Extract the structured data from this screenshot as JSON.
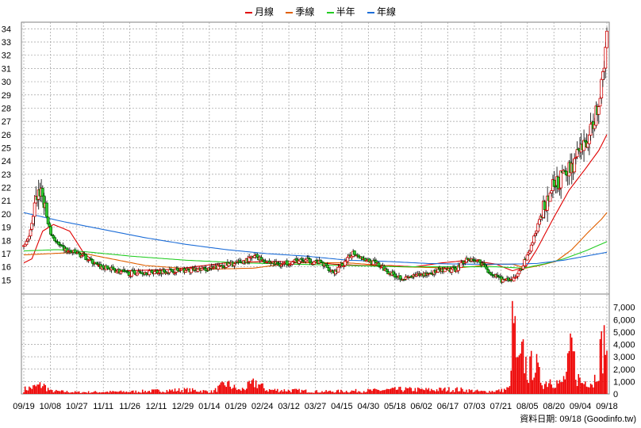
{
  "legend": [
    {
      "name": "月線",
      "color": "#e00000"
    },
    {
      "name": "季線",
      "color": "#e06000"
    },
    {
      "name": "半年",
      "color": "#22cc22"
    },
    {
      "name": "年線",
      "color": "#1e6ed8"
    }
  ],
  "source_note": "資料日期: 09/18 (Goodinfo.tw)",
  "colors": {
    "candle_up_fill": "#ffffff",
    "candle_up_edge": "#d00000",
    "candle_down_fill": "#33cc33",
    "candle_down_edge": "#006600",
    "volume_bar": "#ee0000",
    "grid": "#a0a0a0",
    "frame": "#808080"
  },
  "chart_data": {
    "type": "candlestick_volume",
    "x_tick_labels": [
      "09/19",
      "10/08",
      "10/27",
      "11/11",
      "11/26",
      "12/11",
      "12/29",
      "01/14",
      "01/29",
      "02/24",
      "03/12",
      "03/27",
      "04/15",
      "04/30",
      "05/18",
      "06/02",
      "06/17",
      "07/03",
      "07/21",
      "08/05",
      "08/20",
      "09/04",
      "09/18"
    ],
    "price_axis": {
      "ylim": [
        14,
        34.5
      ],
      "ticks": [
        15,
        16,
        17,
        18,
        19,
        20,
        21,
        22,
        23,
        24,
        25,
        26,
        27,
        28,
        29,
        30,
        31,
        32,
        33,
        34
      ]
    },
    "volume_axis": {
      "ylim": [
        0,
        8000
      ],
      "tick_labels": [
        "0",
        "1,000",
        "2,000",
        "3,000",
        "4,000",
        "5,000",
        "6,000",
        "7,000"
      ],
      "tick_values": [
        0,
        1000,
        2000,
        3000,
        4000,
        5000,
        6000,
        7000
      ]
    },
    "ma_series": [
      {
        "name": "月線",
        "points": [
          [
            0,
            16.3
          ],
          [
            6,
            16.6
          ],
          [
            14,
            18.7
          ],
          [
            22,
            19.2
          ],
          [
            34,
            18.7
          ],
          [
            44,
            17.1
          ],
          [
            56,
            16.0
          ],
          [
            74,
            15.7
          ],
          [
            110,
            15.8
          ],
          [
            150,
            16.3
          ],
          [
            180,
            16.4
          ],
          [
            210,
            16.4
          ],
          [
            230,
            16.2
          ],
          [
            250,
            16.1
          ],
          [
            270,
            16.1
          ],
          [
            290,
            16.0
          ],
          [
            310,
            16.3
          ],
          [
            330,
            16.5
          ],
          [
            350,
            16.2
          ],
          [
            362,
            15.7
          ],
          [
            372,
            16.0
          ],
          [
            380,
            17.3
          ],
          [
            392,
            19.6
          ],
          [
            404,
            21.8
          ],
          [
            416,
            23.4
          ],
          [
            426,
            24.8
          ],
          [
            432,
            26.0
          ]
        ]
      },
      {
        "name": "季線",
        "points": [
          [
            0,
            16.9
          ],
          [
            20,
            17.0
          ],
          [
            40,
            17.1
          ],
          [
            60,
            16.7
          ],
          [
            90,
            16.1
          ],
          [
            130,
            15.8
          ],
          [
            170,
            15.9
          ],
          [
            200,
            16.3
          ],
          [
            240,
            16.3
          ],
          [
            280,
            16.0
          ],
          [
            320,
            15.9
          ],
          [
            350,
            16.2
          ],
          [
            362,
            16.2
          ],
          [
            372,
            15.9
          ],
          [
            382,
            16.1
          ],
          [
            394,
            16.4
          ],
          [
            406,
            17.3
          ],
          [
            418,
            18.6
          ],
          [
            428,
            19.6
          ],
          [
            432,
            20.1
          ]
        ]
      },
      {
        "name": "半年",
        "points": [
          [
            0,
            17.2
          ],
          [
            25,
            17.3
          ],
          [
            50,
            17.1
          ],
          [
            80,
            16.8
          ],
          [
            120,
            16.5
          ],
          [
            160,
            16.3
          ],
          [
            200,
            16.2
          ],
          [
            240,
            16.1
          ],
          [
            280,
            16.0
          ],
          [
            320,
            16.0
          ],
          [
            350,
            16.0
          ],
          [
            370,
            15.9
          ],
          [
            385,
            16.2
          ],
          [
            400,
            16.6
          ],
          [
            416,
            17.2
          ],
          [
            432,
            17.9
          ]
        ]
      },
      {
        "name": "年線",
        "points": [
          [
            0,
            20.1
          ],
          [
            30,
            19.4
          ],
          [
            60,
            18.8
          ],
          [
            90,
            18.2
          ],
          [
            120,
            17.7
          ],
          [
            150,
            17.3
          ],
          [
            180,
            17.0
          ],
          [
            210,
            16.8
          ],
          [
            240,
            16.5
          ],
          [
            270,
            16.4
          ],
          [
            300,
            16.25
          ],
          [
            330,
            16.2
          ],
          [
            360,
            16.2
          ],
          [
            380,
            16.25
          ],
          [
            400,
            16.5
          ],
          [
            416,
            16.8
          ],
          [
            432,
            17.1
          ]
        ]
      }
    ],
    "price_anchors": [
      [
        0,
        17.5
      ],
      [
        3,
        18.0
      ],
      [
        6,
        19.2
      ],
      [
        10,
        21.5
      ],
      [
        13,
        21.9
      ],
      [
        16,
        20.2
      ],
      [
        20,
        18.5
      ],
      [
        26,
        17.6
      ],
      [
        32,
        17.2
      ],
      [
        40,
        17.0
      ],
      [
        48,
        16.6
      ],
      [
        56,
        16.0
      ],
      [
        66,
        15.8
      ],
      [
        76,
        15.5
      ],
      [
        90,
        15.6
      ],
      [
        110,
        15.7
      ],
      [
        130,
        15.8
      ],
      [
        140,
        15.9
      ],
      [
        148,
        16.1
      ],
      [
        160,
        16.3
      ],
      [
        172,
        16.8
      ],
      [
        180,
        16.4
      ],
      [
        190,
        16.2
      ],
      [
        200,
        16.4
      ],
      [
        210,
        16.5
      ],
      [
        220,
        16.3
      ],
      [
        230,
        15.6
      ],
      [
        238,
        16.3
      ],
      [
        244,
        17.1
      ],
      [
        252,
        16.6
      ],
      [
        262,
        16.2
      ],
      [
        272,
        15.5
      ],
      [
        282,
        15.1
      ],
      [
        290,
        15.3
      ],
      [
        300,
        15.5
      ],
      [
        310,
        15.7
      ],
      [
        320,
        15.8
      ],
      [
        328,
        16.6
      ],
      [
        338,
        16.4
      ],
      [
        346,
        15.5
      ],
      [
        354,
        15.0
      ],
      [
        360,
        14.9
      ],
      [
        366,
        15.4
      ],
      [
        374,
        17.0
      ],
      [
        380,
        18.8
      ],
      [
        386,
        20.8
      ],
      [
        392,
        22.0
      ],
      [
        398,
        22.6
      ],
      [
        404,
        23.4
      ],
      [
        410,
        24.3
      ],
      [
        416,
        25.3
      ],
      [
        420,
        26.2
      ],
      [
        424,
        27.7
      ],
      [
        428,
        29.5
      ],
      [
        432,
        33.5
      ]
    ],
    "volume_anchors": [
      [
        0,
        400
      ],
      [
        8,
        600
      ],
      [
        14,
        800
      ],
      [
        20,
        250
      ],
      [
        40,
        150
      ],
      [
        80,
        200
      ],
      [
        120,
        350
      ],
      [
        140,
        200
      ],
      [
        150,
        900
      ],
      [
        160,
        300
      ],
      [
        172,
        1000
      ],
      [
        180,
        350
      ],
      [
        200,
        300
      ],
      [
        220,
        200
      ],
      [
        240,
        250
      ],
      [
        260,
        300
      ],
      [
        280,
        400
      ],
      [
        300,
        350
      ],
      [
        320,
        400
      ],
      [
        340,
        200
      ],
      [
        354,
        300
      ],
      [
        360,
        500
      ],
      [
        362,
        7500
      ],
      [
        366,
        2200
      ],
      [
        370,
        3300
      ],
      [
        374,
        1800
      ],
      [
        378,
        3000
      ],
      [
        382,
        1500
      ],
      [
        386,
        900
      ],
      [
        390,
        1300
      ],
      [
        394,
        1100
      ],
      [
        398,
        800
      ],
      [
        402,
        1700
      ],
      [
        406,
        3900
      ],
      [
        410,
        1500
      ],
      [
        414,
        900
      ],
      [
        418,
        1300
      ],
      [
        422,
        900
      ],
      [
        426,
        3000
      ],
      [
        430,
        4500
      ],
      [
        432,
        4300
      ]
    ]
  }
}
